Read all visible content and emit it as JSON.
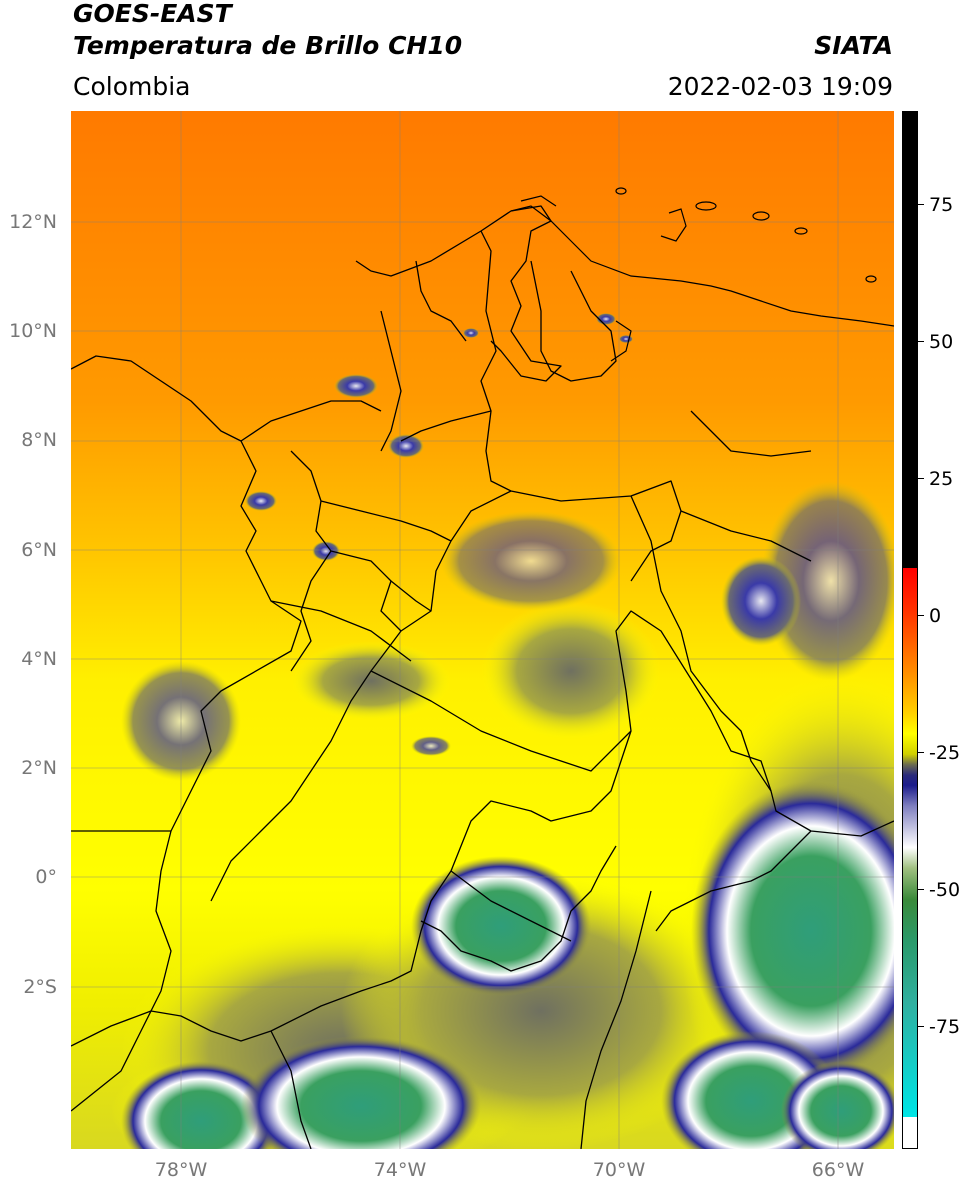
{
  "header": {
    "satellite": "GOES-EAST",
    "product": "Temperatura de Brillo CH10",
    "region": "Colombia",
    "agency": "SIATA",
    "datetime": "2022-02-03 19:09"
  },
  "map": {
    "latitude_labels": [
      "12°N",
      "10°N",
      "8°N",
      "6°N",
      "4°N",
      "2°N",
      "0°",
      "2°S"
    ],
    "longitude_labels": [
      "78°W",
      "74°W",
      "70°W",
      "66°W"
    ],
    "extent": {
      "lon_min": -80,
      "lon_max": -65,
      "lat_min": -5,
      "lat_max": 14
    },
    "gridlines": true
  },
  "colorbar": {
    "tick_labels": [
      "75",
      "50",
      "25",
      "0",
      "-25",
      "-50",
      "-75"
    ],
    "colors": {
      "warm_top": "#000000",
      "zero": "#e31a1c",
      "warm": "#ff8c00",
      "neutral": "#ffff00",
      "cold_blue": "#1c1c8c",
      "cold_white": "#ffffff",
      "cold_green": "#2f9e4a",
      "coldest_cyan": "#00e5e5"
    }
  }
}
